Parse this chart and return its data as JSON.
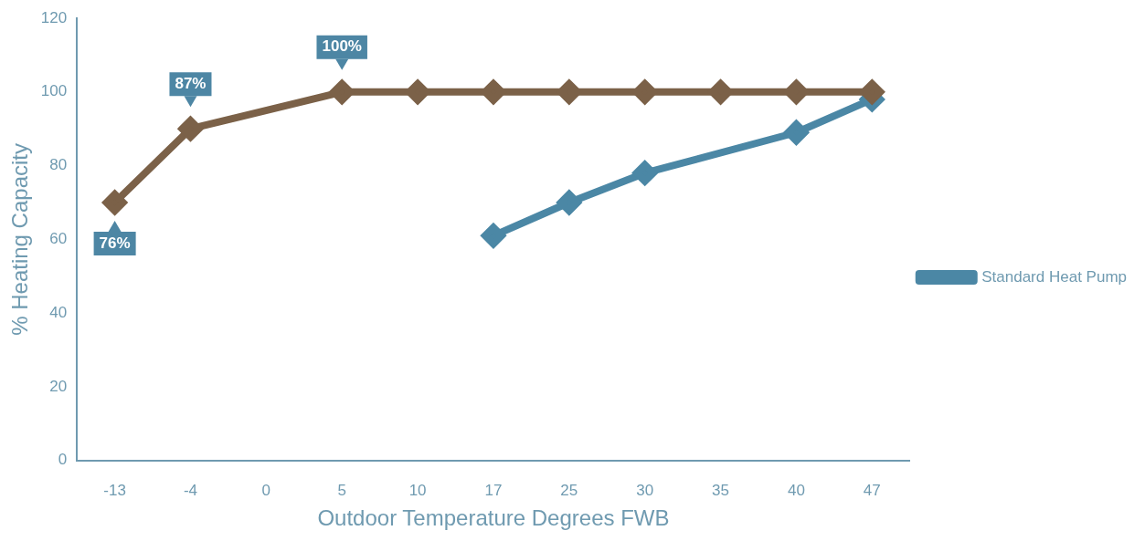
{
  "chart_data": {
    "type": "line",
    "xlabel": "Outdoor Temperature Degrees FWB",
    "ylabel": "% Heating Capacity",
    "categories": [
      "-13",
      "-4",
      "0",
      "5",
      "10",
      "17",
      "25",
      "30",
      "35",
      "40",
      "47"
    ],
    "series": [
      {
        "color": "#7b6148",
        "values": [
          70,
          90,
          null,
          100,
          100,
          100,
          100,
          100,
          100,
          100,
          100
        ]
      },
      {
        "name": "Standard Heat Pump",
        "color": "#4b87a5",
        "values": [
          null,
          null,
          null,
          null,
          null,
          61,
          70,
          78,
          null,
          89,
          98
        ]
      }
    ],
    "ylim": [
      0,
      120
    ],
    "yticks": [
      0,
      20,
      40,
      60,
      80,
      100,
      120
    ],
    "grid": false,
    "legend": "right",
    "marker": "diamond",
    "annotations": [
      {
        "text": "76%",
        "x": "-13",
        "y": 70
      },
      {
        "text": "87%",
        "x": "-4",
        "y": 90
      },
      {
        "text": "100%",
        "x": "5",
        "y": 100
      }
    ]
  }
}
